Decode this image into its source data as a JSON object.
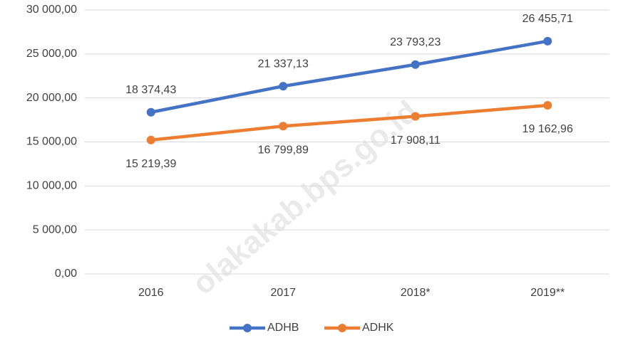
{
  "chart_data": {
    "type": "line",
    "categories": [
      "2016",
      "2017",
      "2018*",
      "2019**"
    ],
    "series": [
      {
        "name": "ADHB",
        "color": "#4472c4",
        "values": [
          18374.43,
          21337.13,
          23793.23,
          26455.71
        ],
        "value_labels": [
          "18 374,43",
          "21 337,13",
          "23 793,23",
          "26 455,71"
        ]
      },
      {
        "name": "ADHK",
        "color": "#ed7d31",
        "values": [
          15219.39,
          16799.89,
          17908.11,
          19162.96
        ],
        "value_labels": [
          "15 219,39",
          "16 799,89",
          "17 908,11",
          "19 162,96"
        ]
      }
    ],
    "ylim": [
      0,
      30000
    ],
    "yticks": [
      {
        "value": 0,
        "label": "0,00"
      },
      {
        "value": 5000,
        "label": "5 000,00"
      },
      {
        "value": 10000,
        "label": "10 000,00"
      },
      {
        "value": 15000,
        "label": "15 000,00"
      },
      {
        "value": 20000,
        "label": "20 000,00"
      },
      {
        "value": 25000,
        "label": "25 000,00"
      },
      {
        "value": 30000,
        "label": "30 000,00"
      }
    ],
    "grid": true,
    "legend": "bottom"
  },
  "watermark": "olakakab.bps.go.id"
}
